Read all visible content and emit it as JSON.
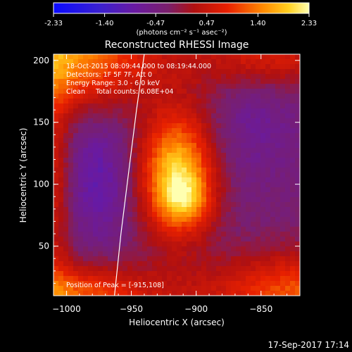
{
  "colorbar": {
    "ticks": [
      "-2.33",
      "-1.40",
      "-0.47",
      "0.47",
      "1.40",
      "2.33"
    ],
    "units": "(photons cm⁻² s⁻¹ asec⁻²)",
    "range": [
      -2.33,
      2.33
    ]
  },
  "chart_data": {
    "type": "heatmap",
    "title": "Reconstructed RHESSI Image",
    "xlabel": "Heliocentric X (arcsec)",
    "ylabel": "Heliocentric Y (arcsec)",
    "xlim": [
      -1010,
      -820
    ],
    "ylim": [
      10,
      205
    ],
    "xticks": [
      -1000,
      -950,
      -900,
      -850
    ],
    "xtick_labels": [
      "−1000",
      "−950",
      "−900",
      "−850"
    ],
    "yticks": [
      50,
      100,
      150,
      200
    ],
    "ytick_labels": [
      "50",
      "100",
      "150",
      "200"
    ],
    "annotations": [
      "18-Oct-2015 08:09:44.000 to 08:19:44.000",
      "Detectors: 1F 5F 7F, Att 0",
      "Energy Range: 3.0 - 6.0 keV",
      "Clean     Total counts: 6.08E+04"
    ],
    "peak_label": "Position of Peak = [-915,108]",
    "peak": [
      -915,
      108
    ],
    "limb_points": [
      [
        -963,
        10
      ],
      [
        -958,
        60
      ],
      [
        -952,
        110
      ],
      [
        -946,
        160
      ],
      [
        -940,
        205
      ]
    ],
    "sources": [
      {
        "x": -915,
        "y": 108,
        "amp": 2.3,
        "sx": 20,
        "sy": 35
      },
      {
        "x": -908,
        "y": 88,
        "amp": 0.8,
        "sx": 14,
        "sy": 14
      },
      {
        "x": -1010,
        "y": 205,
        "amp": 2.0,
        "sx": 55,
        "sy": 30
      },
      {
        "x": -1010,
        "y": 10,
        "amp": 1.6,
        "sx": 60,
        "sy": 18
      },
      {
        "x": -820,
        "y": 10,
        "amp": 1.5,
        "sx": 50,
        "sy": 25
      },
      {
        "x": -845,
        "y": 205,
        "amp": 1.0,
        "sx": 40,
        "sy": 20
      },
      {
        "x": -1010,
        "y": 100,
        "amp": 0.9,
        "sx": 10,
        "sy": 60
      }
    ]
  },
  "footer": {
    "date": "17-Sep-2017 17:14"
  }
}
